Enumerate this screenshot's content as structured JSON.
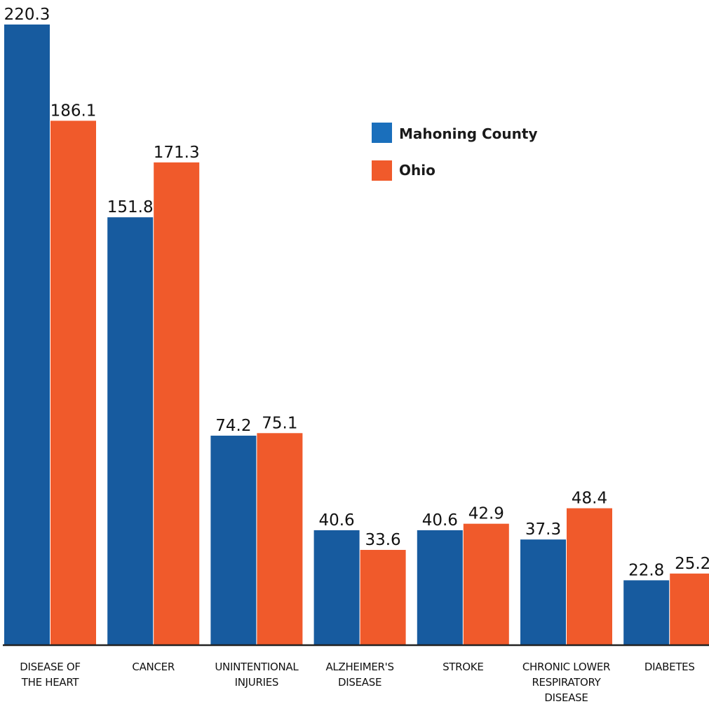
{
  "chart_data": {
    "type": "bar",
    "categories": [
      [
        "DISEASE OF",
        "THE HEART"
      ],
      [
        "CANCER"
      ],
      [
        "UNINTENTIONAL",
        "INJURIES"
      ],
      [
        "ALZHEIMER'S",
        "DISEASE"
      ],
      [
        "STROKE"
      ],
      [
        "CHRONIC LOWER",
        "RESPIRATORY",
        "DISEASE"
      ],
      [
        "DIABETES"
      ]
    ],
    "series": [
      {
        "name": "Mahoning County",
        "color": "#175b9f",
        "values": [
          220.3,
          151.8,
          74.2,
          40.6,
          40.6,
          37.3,
          22.8
        ],
        "labels": [
          "220.3",
          "151.8",
          "74.2",
          "40.6",
          "40.6",
          "37.3",
          "22.8"
        ]
      },
      {
        "name": "Ohio",
        "color": "#f05a2b",
        "values": [
          186.1,
          171.3,
          75.1,
          33.6,
          42.9,
          48.4,
          25.2
        ],
        "labels": [
          "186.1",
          "171.3",
          "75.1",
          "33.6",
          "42.9",
          "48.4",
          "25.2"
        ]
      }
    ],
    "legend_position": "top-right",
    "grid": false,
    "ylim": [
      0,
      220.3
    ]
  },
  "legend": {
    "items": [
      {
        "label": "Mahoning County",
        "color": "#1a6fbc"
      },
      {
        "label": "Ohio",
        "color": "#f05a2b"
      }
    ]
  },
  "colors": {
    "axis": "#222222",
    "text": "#111111"
  }
}
